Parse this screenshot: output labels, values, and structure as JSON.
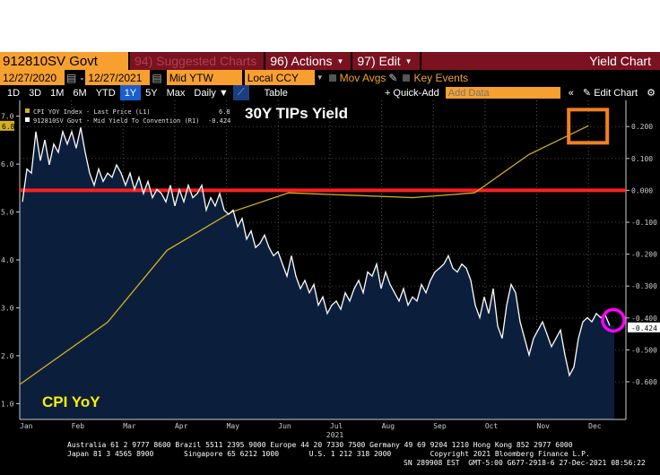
{
  "header": {
    "security": "912810SV Govt",
    "suggested": "94) Suggested Charts",
    "actions": "96) Actions",
    "edit": "97) Edit",
    "title": "Yield Chart"
  },
  "controls": {
    "start_date": "12/27/2020",
    "end_date": "12/27/2021",
    "field": "Mid YTW",
    "currency": "Local CCY",
    "mov_avgs": "Mov Avgs",
    "key_events": "Key Events"
  },
  "toolbar": {
    "periods": [
      "1D",
      "3D",
      "1M",
      "6M",
      "YTD",
      "1Y",
      "5Y",
      "Max"
    ],
    "active_period": "1Y",
    "frequency": "Daily",
    "table": "Table",
    "quick_add": "+ Quick-Add",
    "add_data_placeholder": "Add Data",
    "edit_chart": "Edit Chart"
  },
  "legend": [
    {
      "label": "CPI YOY Index - Last Price (L1)",
      "value": "6.8",
      "color": "#e0c020"
    },
    {
      "label": "912810SV Govt - Mid Yield To Convention (R1)",
      "value": "-0.424",
      "color": "#ffffff"
    }
  ],
  "annotations": {
    "title": "30Y TIPs Yield",
    "cpi_label": "CPI YoY",
    "last_cpi_tag": "6.8",
    "last_yield_tag": "-0.424"
  },
  "footer": {
    "line1": "Australia 61 2 9777 8600 Brazil 5511 2395 9000 Europe 44 20 7330 7500 Germany 49 69 9204 1210 Hong Kong 852 2977 6000",
    "line2": "Japan 81 3 4565 8900       Singapore 65 6212 1000       U.S. 1 212 318 2000         Copyright 2021 Bloomberg Finance L.P.",
    "line3": "SN 289908 EST  GMT-5:00 G677-2918-6 27-Dec-2021 08:56:22"
  },
  "chart_data": {
    "type": "line",
    "title": "30Y TIPs Yield",
    "x_ticks": [
      "Jan",
      "Feb",
      "Mar",
      "Apr",
      "May",
      "Jun",
      "Jul",
      "Aug",
      "Sep",
      "Oct",
      "Nov",
      "Dec"
    ],
    "x_year": "2021",
    "left_axis": {
      "ylim": [
        0.67,
        7.33
      ],
      "ticks": [
        "1.0",
        "2.0",
        "3.0",
        "4.0",
        "5.0",
        "6.0",
        "7.0"
      ]
    },
    "right_axis": {
      "ylim": [
        -0.718,
        0.282
      ],
      "ticks": [
        "0.200",
        "0.100",
        "0.000",
        "-0.100",
        "-0.200",
        "-0.300",
        "-0.400",
        "-0.500",
        "-0.600"
      ]
    },
    "series": [
      {
        "name": "CPI YOY Index - Last Price (L1)",
        "axis": "left",
        "color": "#d4b020",
        "x": [
          0,
          1.7,
          2.85,
          4.1,
          5.2,
          7.6,
          8.8,
          9.85,
          11.0
        ],
        "values": [
          1.4,
          2.7,
          4.2,
          5.0,
          5.4,
          5.3,
          5.4,
          6.2,
          6.8
        ]
      },
      {
        "name": "912810SV Govt - Mid Yield To Convention (R1)",
        "axis": "right",
        "color": "#ffffff",
        "values": [
          -0.036,
          0.067,
          0.054,
          0.184,
          0.093,
          0.158,
          0.08,
          0.145,
          0.119,
          0.184,
          0.145,
          0.184,
          0.132,
          0.197,
          0.119,
          0.054,
          0.016,
          0.067,
          0.028,
          0.054,
          0.041,
          0.08,
          0.054,
          0.016,
          0.054,
          0.003,
          0.041,
          -0.01,
          0.028,
          -0.023,
          0.003,
          -0.01,
          -0.036,
          0.016,
          -0.049,
          0.003,
          -0.036,
          0.016,
          -0.023,
          -0.01,
          0.016,
          -0.062,
          -0.023,
          -0.049,
          -0.01,
          -0.062,
          -0.075,
          -0.062,
          -0.114,
          -0.088,
          -0.153,
          -0.127,
          -0.179,
          -0.166,
          -0.14,
          -0.179,
          -0.205,
          -0.192,
          -0.231,
          -0.269,
          -0.205,
          -0.269,
          -0.308,
          -0.282,
          -0.321,
          -0.295,
          -0.36,
          -0.334,
          -0.386,
          -0.36,
          -0.347,
          -0.373,
          -0.321,
          -0.347,
          -0.308,
          -0.282,
          -0.321,
          -0.256,
          -0.269,
          -0.231,
          -0.308,
          -0.256,
          -0.295,
          -0.321,
          -0.347,
          -0.308,
          -0.36,
          -0.334,
          -0.347,
          -0.295,
          -0.321,
          -0.282,
          -0.256,
          -0.244,
          -0.231,
          -0.205,
          -0.244,
          -0.256,
          -0.231,
          -0.244,
          -0.282,
          -0.36,
          -0.399,
          -0.334,
          -0.386,
          -0.308,
          -0.425,
          -0.464,
          -0.36,
          -0.295,
          -0.321,
          -0.412,
          -0.464,
          -0.516,
          -0.464,
          -0.438,
          -0.412,
          -0.451,
          -0.49,
          -0.464,
          -0.438,
          -0.516,
          -0.58,
          -0.554,
          -0.464,
          -0.412,
          -0.399,
          -0.412,
          -0.386,
          -0.399,
          -0.391,
          -0.424
        ]
      }
    ],
    "reference_line": {
      "axis": "right",
      "value": 0.0,
      "color": "#ff2020"
    },
    "highlights": {
      "box_color": "#f08020",
      "circle_color": "#ff00ff"
    },
    "grid": true
  }
}
